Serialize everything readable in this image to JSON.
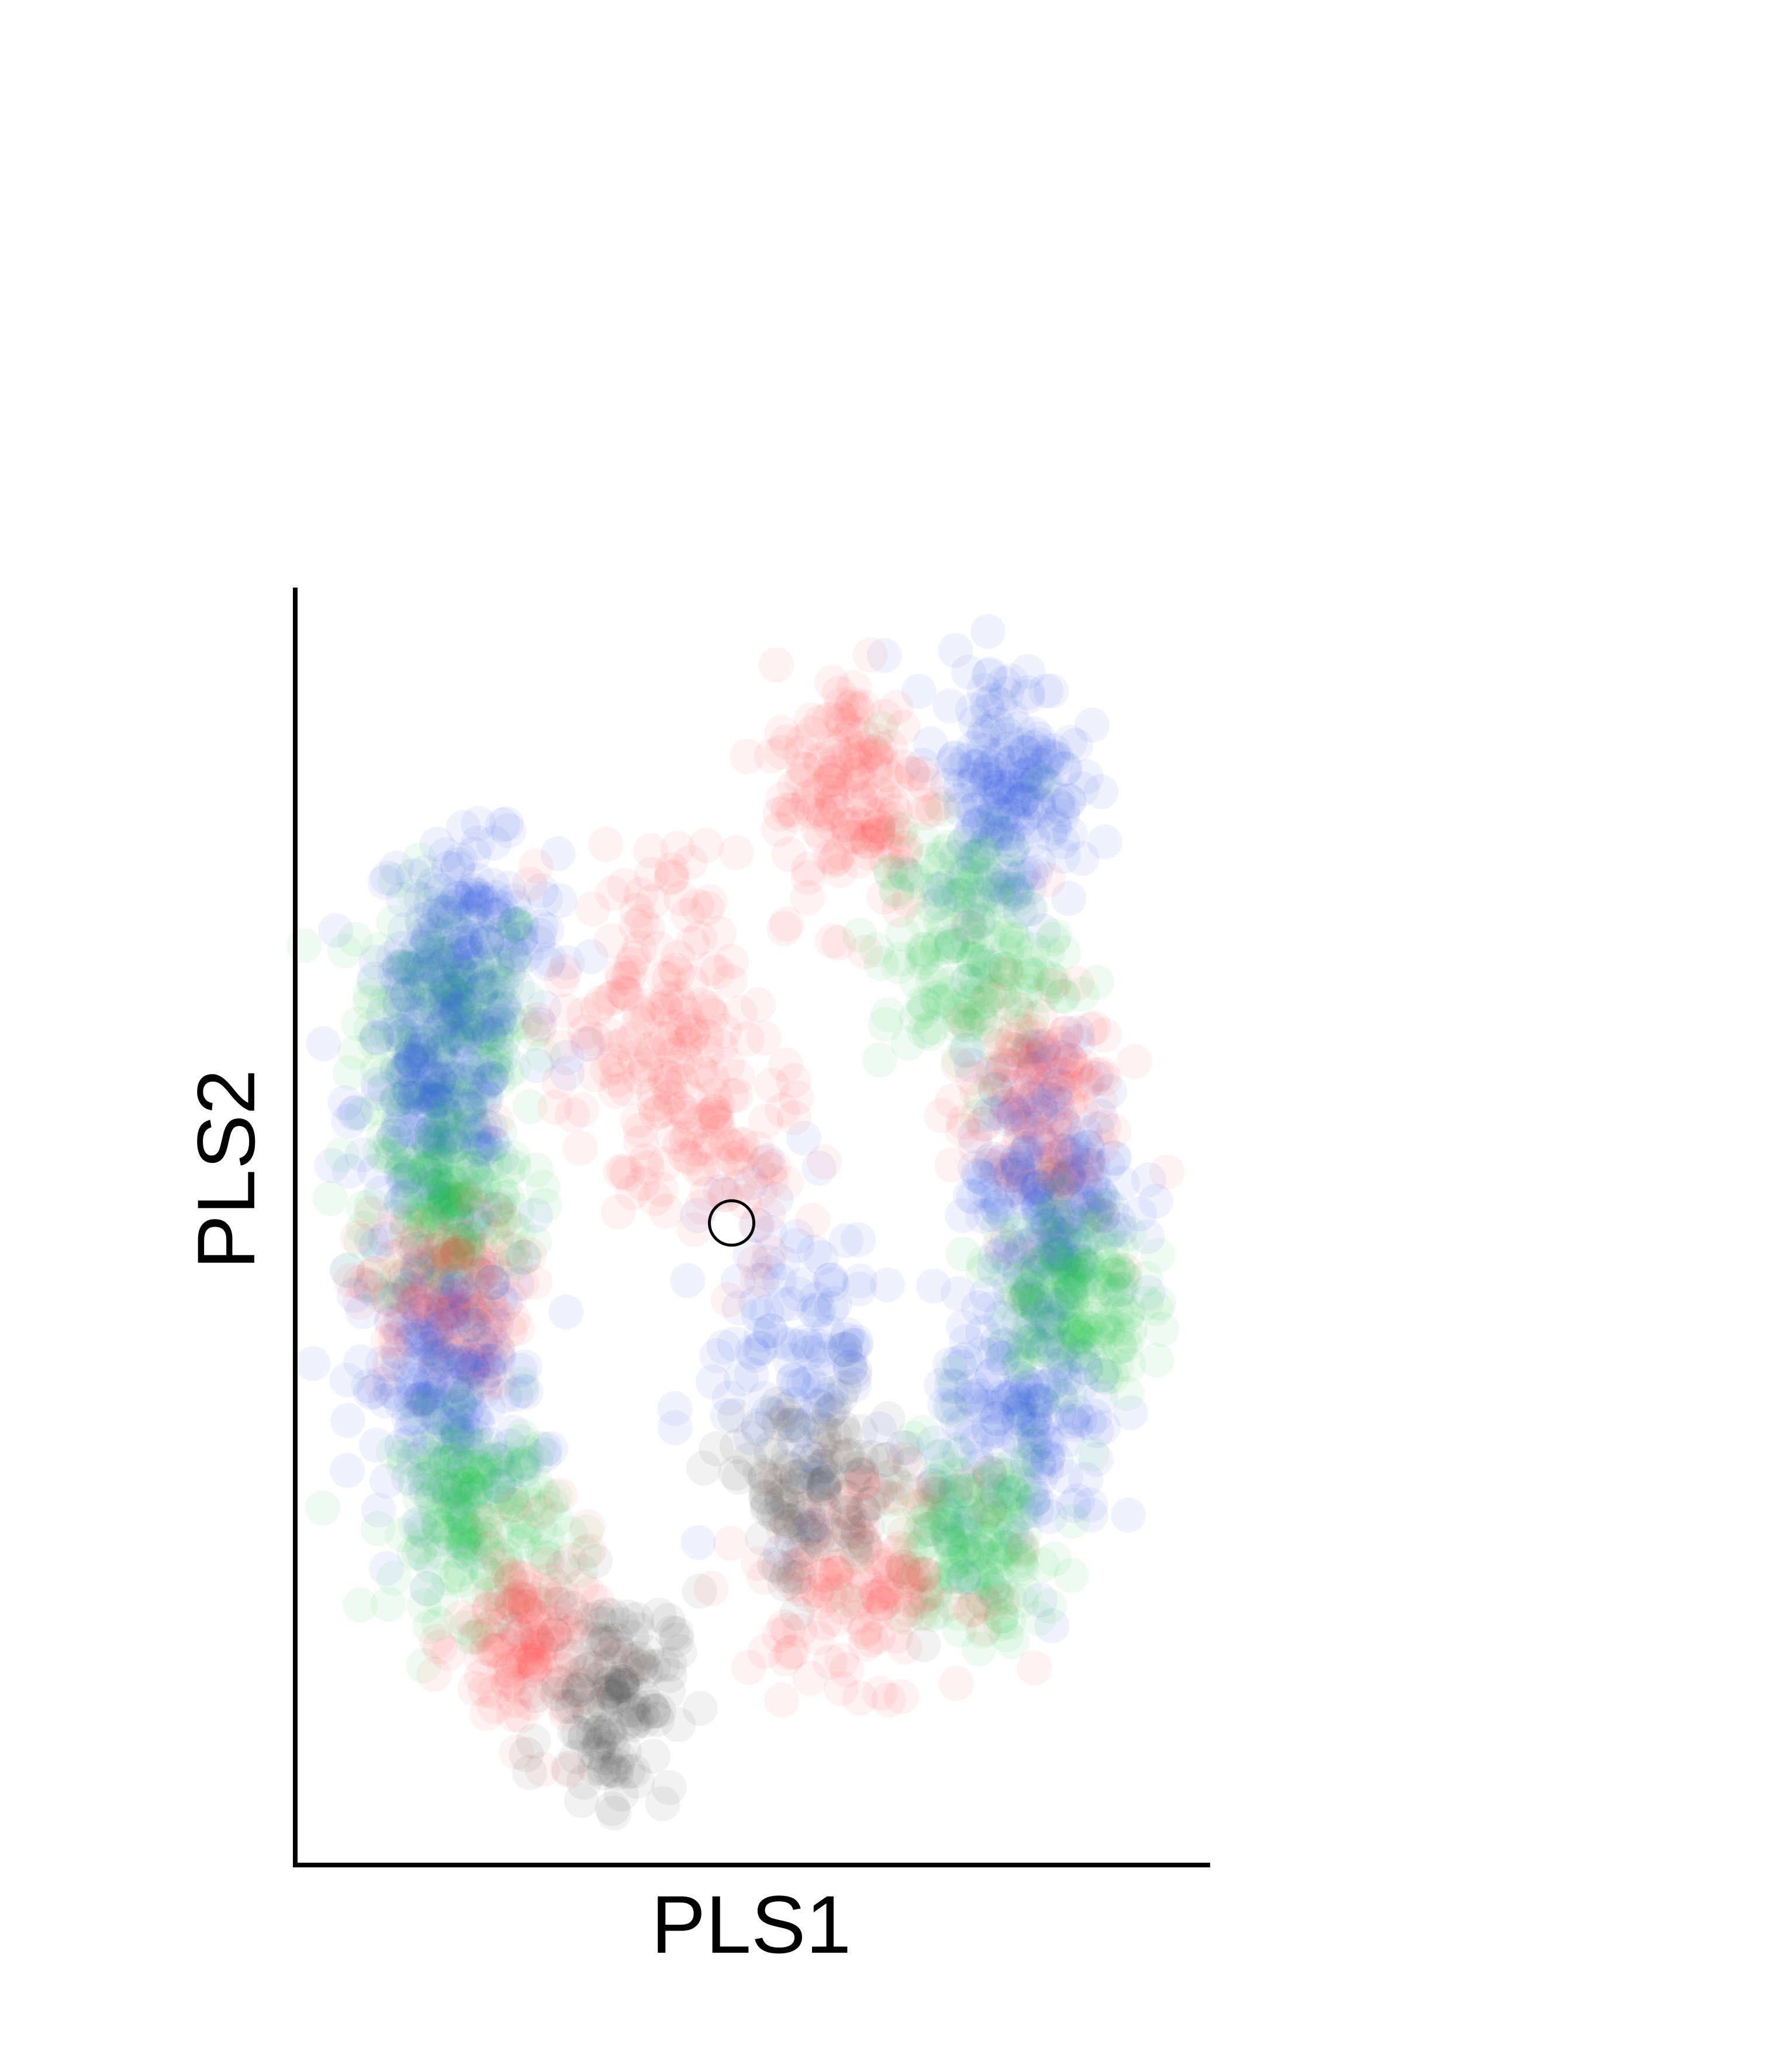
{
  "chart_data": {
    "type": "scatter",
    "title": "",
    "xlabel": "PLS1",
    "ylabel": "PLS2",
    "xlim": [
      0,
      1
    ],
    "ylim": [
      0,
      1
    ],
    "grid": false,
    "legend": "none",
    "ticks": false,
    "marker_alpha": 0.07,
    "point_colors": {
      "red": "#ff4040",
      "green": "#20c040",
      "blue": "#3050e0",
      "gray": "#404040"
    },
    "clusters": [
      {
        "color": "green",
        "count": 180,
        "x": 0.16,
        "y": 0.65,
        "sx": 0.05,
        "sy": 0.05
      },
      {
        "color": "blue",
        "count": 170,
        "x": 0.18,
        "y": 0.71,
        "sx": 0.05,
        "sy": 0.04
      },
      {
        "color": "blue",
        "count": 200,
        "x": 0.15,
        "y": 0.58,
        "sx": 0.045,
        "sy": 0.05
      },
      {
        "color": "green",
        "count": 170,
        "x": 0.16,
        "y": 0.5,
        "sx": 0.045,
        "sy": 0.04
      },
      {
        "color": "red",
        "count": 140,
        "x": 0.15,
        "y": 0.43,
        "sx": 0.045,
        "sy": 0.035
      },
      {
        "color": "blue",
        "count": 200,
        "x": 0.16,
        "y": 0.36,
        "sx": 0.05,
        "sy": 0.05
      },
      {
        "color": "green",
        "count": 180,
        "x": 0.19,
        "y": 0.26,
        "sx": 0.045,
        "sy": 0.04
      },
      {
        "color": "red",
        "count": 130,
        "x": 0.25,
        "y": 0.16,
        "sx": 0.04,
        "sy": 0.04
      },
      {
        "color": "gray",
        "count": 140,
        "x": 0.34,
        "y": 0.12,
        "sx": 0.035,
        "sy": 0.04
      },
      {
        "color": "red",
        "count": 130,
        "x": 0.38,
        "y": 0.66,
        "sx": 0.05,
        "sy": 0.06
      },
      {
        "color": "red",
        "count": 150,
        "x": 0.61,
        "y": 0.83,
        "sx": 0.045,
        "sy": 0.05
      },
      {
        "color": "blue",
        "count": 200,
        "x": 0.78,
        "y": 0.83,
        "sx": 0.04,
        "sy": 0.05
      },
      {
        "color": "green",
        "count": 170,
        "x": 0.74,
        "y": 0.7,
        "sx": 0.05,
        "sy": 0.05
      },
      {
        "color": "red",
        "count": 150,
        "x": 0.81,
        "y": 0.58,
        "sx": 0.045,
        "sy": 0.05
      },
      {
        "color": "blue",
        "count": 190,
        "x": 0.83,
        "y": 0.52,
        "sx": 0.045,
        "sy": 0.05
      },
      {
        "color": "green",
        "count": 180,
        "x": 0.85,
        "y": 0.43,
        "sx": 0.04,
        "sy": 0.04
      },
      {
        "color": "blue",
        "count": 170,
        "x": 0.8,
        "y": 0.33,
        "sx": 0.05,
        "sy": 0.05
      },
      {
        "color": "green",
        "count": 160,
        "x": 0.74,
        "y": 0.24,
        "sx": 0.05,
        "sy": 0.04
      },
      {
        "color": "red",
        "count": 140,
        "x": 0.62,
        "y": 0.21,
        "sx": 0.06,
        "sy": 0.04
      },
      {
        "color": "gray",
        "count": 130,
        "x": 0.56,
        "y": 0.28,
        "sx": 0.05,
        "sy": 0.04
      },
      {
        "color": "blue",
        "count": 110,
        "x": 0.55,
        "y": 0.4,
        "sx": 0.05,
        "sy": 0.06
      },
      {
        "color": "red",
        "count": 90,
        "x": 0.45,
        "y": 0.55,
        "sx": 0.05,
        "sy": 0.05
      }
    ],
    "highlight_point": {
      "x": 0.475,
      "y": 0.49,
      "style": "open-circle",
      "color": "#000000"
    }
  }
}
